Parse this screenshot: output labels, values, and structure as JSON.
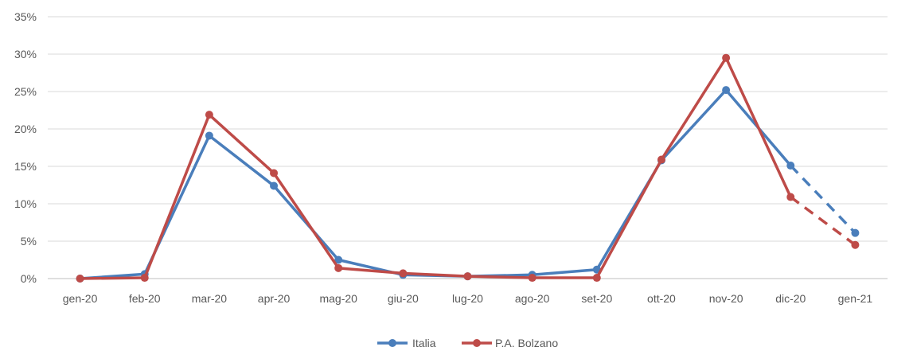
{
  "chart_data": {
    "type": "line",
    "categories": [
      "gen-20",
      "feb-20",
      "mar-20",
      "apr-20",
      "mag-20",
      "giu-20",
      "lug-20",
      "ago-20",
      "set-20",
      "ott-20",
      "nov-20",
      "dic-20",
      "gen-21"
    ],
    "y_ticks": [
      "0%",
      "5%",
      "10%",
      "15%",
      "20%",
      "25%",
      "30%",
      "35%"
    ],
    "ylim": [
      0,
      35
    ],
    "grid": true,
    "legend_position": "bottom",
    "series": [
      {
        "name": "Italia",
        "color": "#4a7ebb",
        "values": [
          0,
          0.6,
          19.1,
          12.4,
          2.5,
          0.5,
          0.3,
          0.5,
          1.2,
          15.8,
          25.2,
          15.1,
          6.1
        ],
        "dashed_from_index": 11
      },
      {
        "name": "P.A. Bolzano",
        "color": "#be4b48",
        "values": [
          0,
          0.1,
          21.9,
          14.1,
          1.4,
          0.7,
          0.3,
          0.1,
          0.1,
          15.9,
          29.5,
          10.9,
          4.5
        ],
        "dashed_from_index": 11
      }
    ]
  }
}
